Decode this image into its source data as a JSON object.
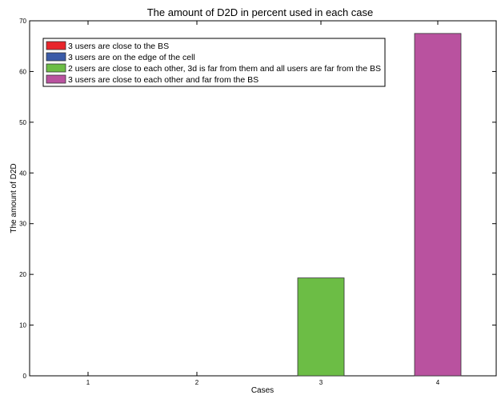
{
  "chart_data": {
    "type": "bar",
    "title": "The amount of D2D in percent used in each case",
    "xlabel": "Cases",
    "ylabel": "The amount of D2D",
    "categories": [
      "1",
      "2",
      "3",
      "4"
    ],
    "ylim": [
      0,
      70
    ],
    "yticks": [
      "0",
      "10",
      "20",
      "30",
      "40",
      "50",
      "60",
      "70"
    ],
    "grid": false,
    "legend_position": "top-left",
    "series": [
      {
        "name": "3 users are close to the BS",
        "color": "#e8252b",
        "values": [
          0,
          0,
          0,
          0
        ]
      },
      {
        "name": "3 users are on the edge of the cell",
        "color": "#3a5ba8",
        "values": [
          0,
          0,
          0,
          0
        ]
      },
      {
        "name": "2 users are close to each other, 3d is far from them and all users are far from the BS",
        "color": "#6cbd45",
        "values": [
          0,
          0,
          19.3,
          0
        ]
      },
      {
        "name": "3 users are close to each other and far from the BS",
        "color": "#b9529f",
        "values": [
          0,
          0,
          0,
          67.5
        ]
      }
    ]
  }
}
